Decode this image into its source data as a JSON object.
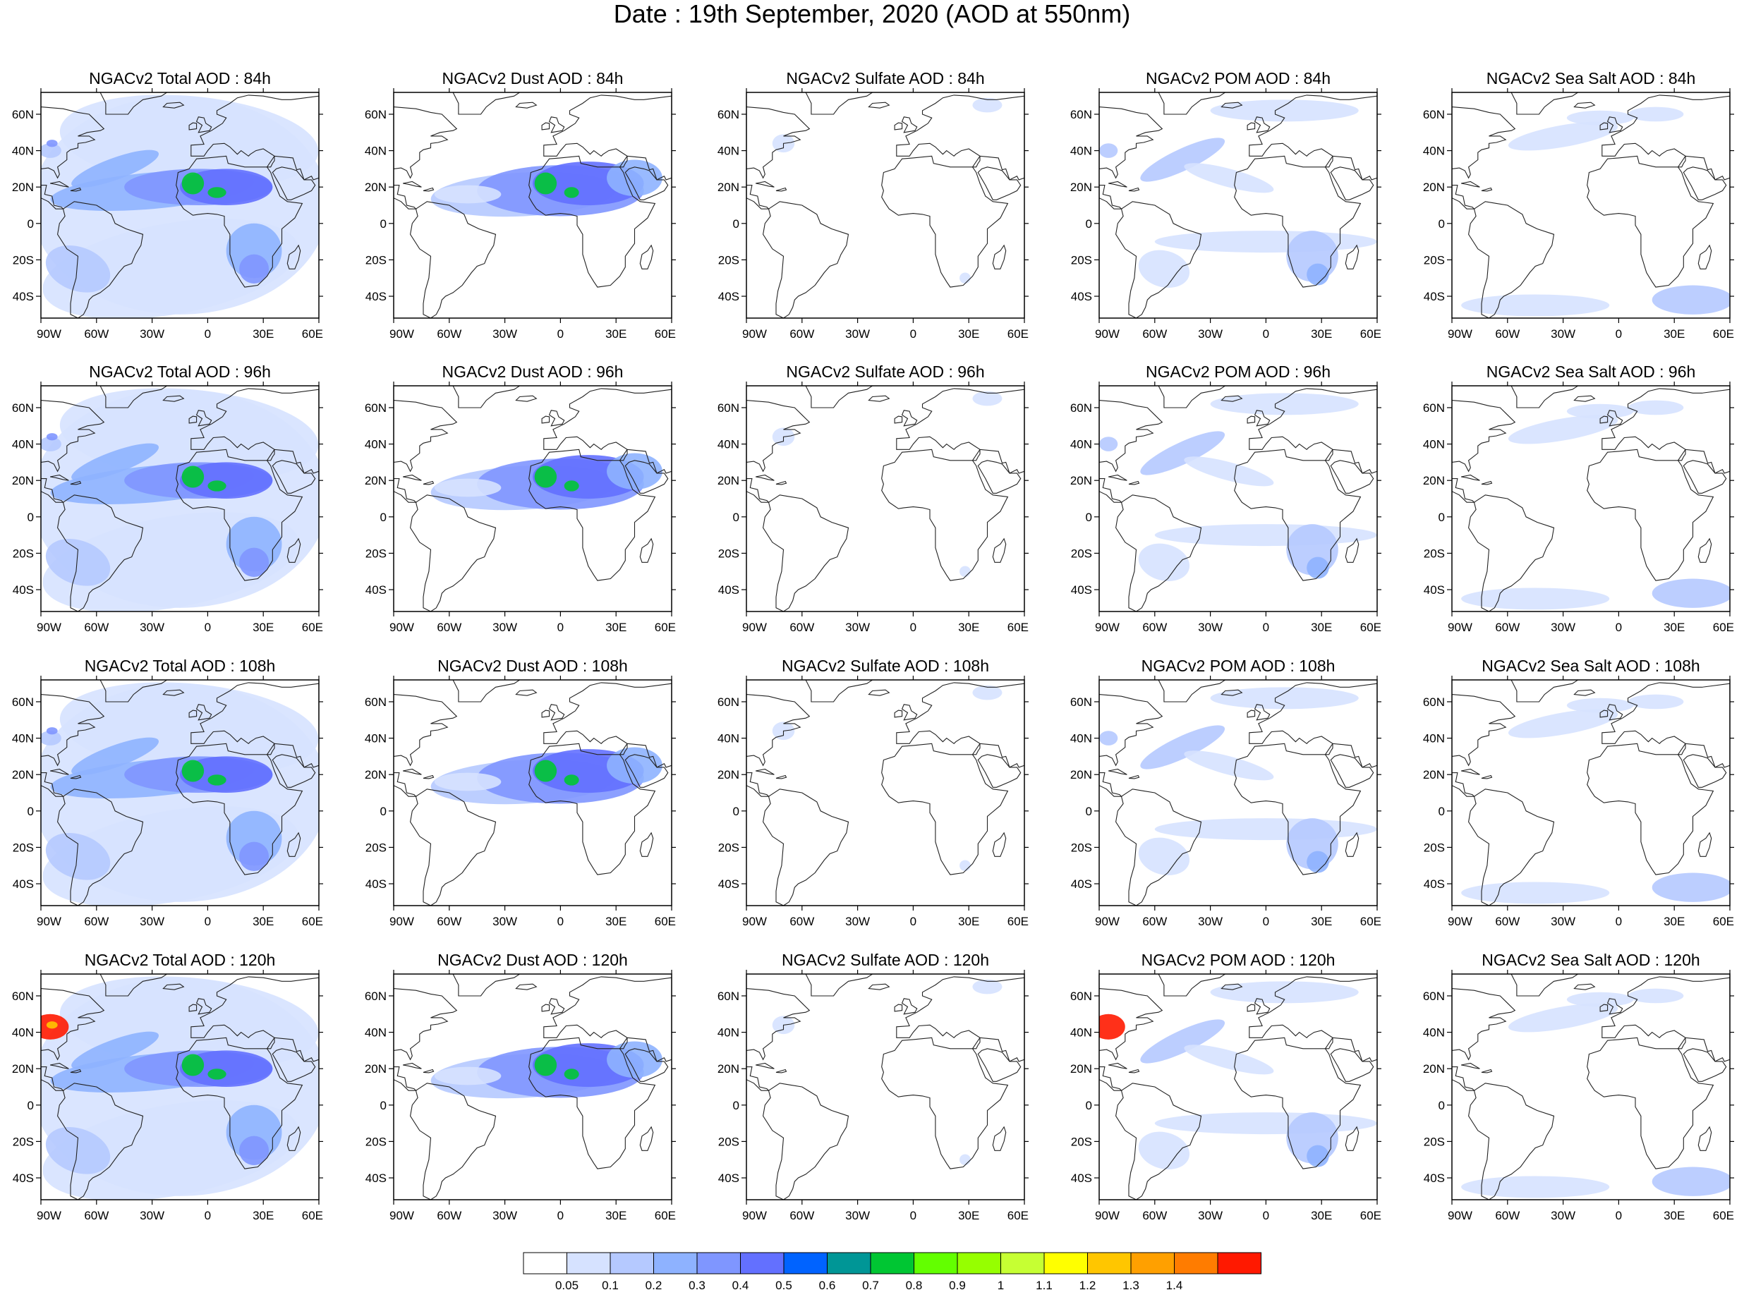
{
  "title": "Date : 19th September, 2020 (AOD at 550nm)",
  "axes": {
    "lon_ticks": [
      "90W",
      "60W",
      "30W",
      "0",
      "30E",
      "60E"
    ],
    "lat_ticks": [
      "60N",
      "40N",
      "20N",
      "0",
      "20S",
      "40S"
    ],
    "lon_range": [
      -90,
      60
    ],
    "lat_range": [
      -52,
      72
    ]
  },
  "panels": [
    {
      "title": "NGACv2 Total AOD : 84h",
      "species": "total",
      "lead": "84h"
    },
    {
      "title": "NGACv2 Dust AOD : 84h",
      "species": "dust",
      "lead": "84h"
    },
    {
      "title": "NGACv2 Sulfate AOD : 84h",
      "species": "sulfate",
      "lead": "84h"
    },
    {
      "title": "NGACv2 POM AOD : 84h",
      "species": "pom",
      "lead": "84h"
    },
    {
      "title": "NGACv2 Sea Salt AOD : 84h",
      "species": "seasalt",
      "lead": "84h"
    },
    {
      "title": "NGACv2 Total AOD : 96h",
      "species": "total",
      "lead": "96h"
    },
    {
      "title": "NGACv2 Dust AOD : 96h",
      "species": "dust",
      "lead": "96h"
    },
    {
      "title": "NGACv2 Sulfate AOD : 96h",
      "species": "sulfate",
      "lead": "96h"
    },
    {
      "title": "NGACv2 POM AOD : 96h",
      "species": "pom",
      "lead": "96h"
    },
    {
      "title": "NGACv2 Sea Salt AOD : 96h",
      "species": "seasalt",
      "lead": "96h"
    },
    {
      "title": "NGACv2 Total AOD : 108h",
      "species": "total",
      "lead": "108h"
    },
    {
      "title": "NGACv2 Dust AOD : 108h",
      "species": "dust",
      "lead": "108h"
    },
    {
      "title": "NGACv2 Sulfate AOD : 108h",
      "species": "sulfate",
      "lead": "108h"
    },
    {
      "title": "NGACv2 POM AOD : 108h",
      "species": "pom",
      "lead": "108h"
    },
    {
      "title": "NGACv2 Sea Salt AOD : 108h",
      "species": "seasalt",
      "lead": "108h"
    },
    {
      "title": "NGACv2 Total AOD : 120h",
      "species": "total",
      "lead": "120h"
    },
    {
      "title": "NGACv2 Dust AOD : 120h",
      "species": "dust",
      "lead": "120h"
    },
    {
      "title": "NGACv2 Sulfate AOD : 120h",
      "species": "sulfate",
      "lead": "120h"
    },
    {
      "title": "NGACv2 POM AOD : 120h",
      "species": "pom",
      "lead": "120h"
    },
    {
      "title": "NGACv2 Sea Salt  AOD : 120h",
      "species": "seasalt",
      "lead": "120h"
    }
  ],
  "colorbar": {
    "labels": [
      "0.05",
      "0.1",
      "0.2",
      "0.3",
      "0.4",
      "0.5",
      "0.6",
      "0.7",
      "0.8",
      "0.9",
      "1",
      "1.1",
      "1.2",
      "1.3",
      "1.4"
    ],
    "colors": [
      "#ffffff",
      "#d6e2ff",
      "#b5c9ff",
      "#8eb2ff",
      "#7f96ff",
      "#6370ff",
      "#0063ff",
      "#009696",
      "#00c633",
      "#63ff00",
      "#96ff00",
      "#c6ff33",
      "#ffff00",
      "#ffc600",
      "#ffa000",
      "#ff7c00",
      "#ff1900"
    ]
  }
}
